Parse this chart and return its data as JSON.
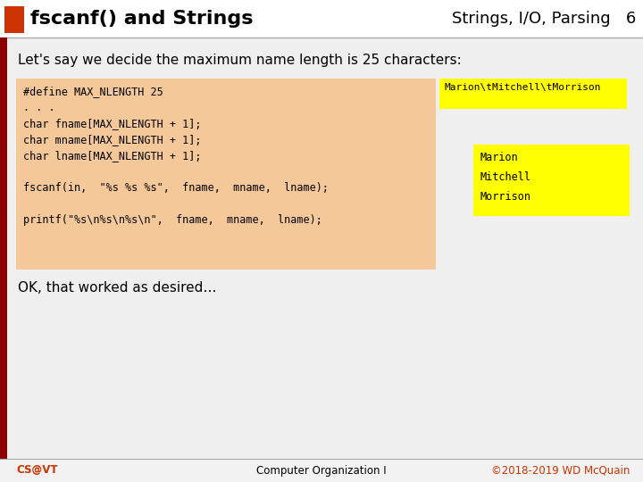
{
  "title_left": "fscanf() and Strings",
  "title_right": "Strings, I/O, Parsing   6",
  "header_bar_color": "#cc3300",
  "left_bar_color": "#8b0000",
  "slide_bg": "#f2f2f2",
  "body_bg": "#efefef",
  "orange_code_bg": "#f5c89a",
  "yellow_color": "#ffff00",
  "subtitle": "Let's say we decide the maximum name length is 25 characters:",
  "code_lines": [
    "#define MAX_NLENGTH 25",
    ". . .",
    "char fname[MAX_NLENGTH + 1];",
    "char mname[MAX_NLENGTH + 1];",
    "char lname[MAX_NLENGTH + 1];",
    "",
    "fscanf(in,  \"%s %s %s\",  fname,  mname,  lname);",
    "",
    "printf(\"%s\\n%s\\n%s\\n\",  fname,  mname,  lname);"
  ],
  "yellow_text1": "Marion\\tMitchell\\tMorrison",
  "yellow_text2_lines": [
    "Marion",
    "Mitchell",
    "Morrison"
  ],
  "ok_text": "OK, that worked as desired…",
  "footer_left": "CS@VT",
  "footer_center": "Computer Organization I",
  "footer_right": "©2018-2019 WD McQuain",
  "accent_color": "#cc3300"
}
